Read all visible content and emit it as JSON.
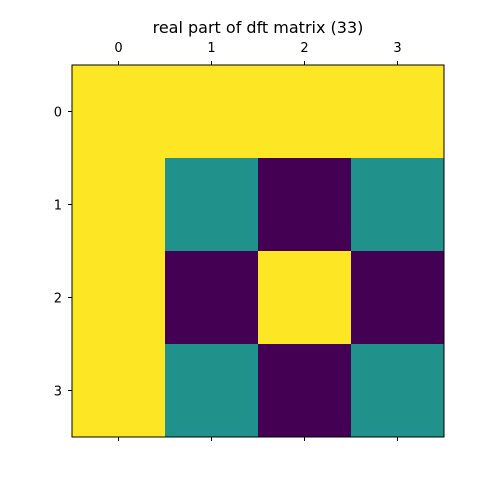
{
  "chart_data": {
    "type": "heatmap",
    "title": "real part of dft matrix (33)",
    "x_tick_labels": [
      "0",
      "1",
      "2",
      "3"
    ],
    "y_tick_labels": [
      "0",
      "1",
      "2",
      "3"
    ],
    "x_axis_position": "top",
    "xlabel": "",
    "ylabel": "",
    "matrix": [
      [
        1,
        1,
        1,
        1
      ],
      [
        1,
        0,
        -1,
        0
      ],
      [
        1,
        -1,
        1,
        -1
      ],
      [
        1,
        0,
        -1,
        0
      ]
    ],
    "value_range": [
      -1,
      1
    ],
    "colormap": "viridis",
    "colors": {
      "low": "#440154",
      "mid": "#21918c",
      "high": "#fde725"
    },
    "grid": false
  }
}
